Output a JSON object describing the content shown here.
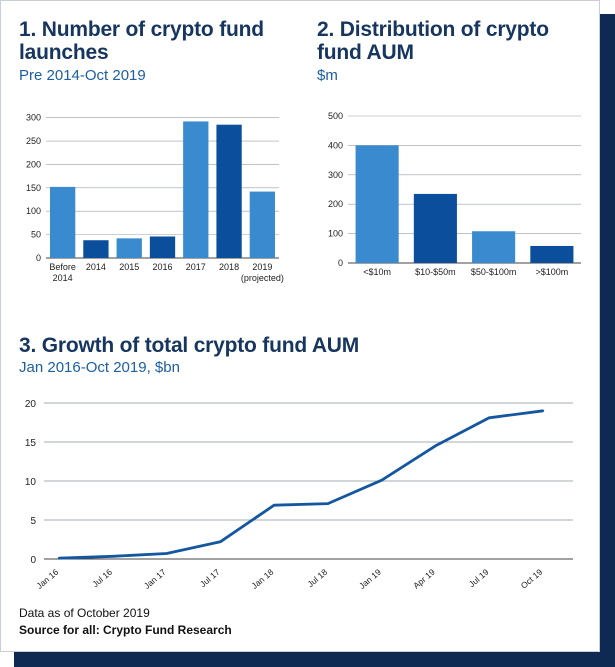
{
  "charts": {
    "one": {
      "title": "1. Number of crypto fund launches",
      "subtitle": "Pre 2014-Oct 2019"
    },
    "two": {
      "title": "2. Distribution of crypto fund AUM",
      "subtitle": "$m"
    },
    "three": {
      "title": "3. Growth of total crypto fund AUM",
      "subtitle": "Jan 2016-Oct 2019, $bn"
    }
  },
  "footer": {
    "note": "Data as of October 2019",
    "source": "Source for all: Crypto Fund Research"
  },
  "colors": {
    "light_blue": "#3a8ad0",
    "dark_blue": "#0b4f9c",
    "line": "#1457a0",
    "title": "#17365f",
    "subtitle": "#1c5fa6"
  },
  "chart_data": [
    {
      "type": "bar",
      "title": "1. Number of crypto fund launches",
      "subtitle": "Pre 2014-Oct 2019",
      "categories": [
        [
          "Before",
          "2014"
        ],
        [
          "2014"
        ],
        [
          "2015"
        ],
        [
          "2016"
        ],
        [
          "2017"
        ],
        [
          "2018"
        ],
        [
          "2019",
          "(projected)"
        ]
      ],
      "values": [
        152,
        38,
        42,
        46,
        292,
        285,
        142
      ],
      "bar_colors": [
        "light",
        "dark",
        "light",
        "dark",
        "light",
        "dark",
        "light"
      ],
      "yticks": [
        0,
        50,
        100,
        150,
        200,
        250,
        300
      ],
      "ylim": [
        0,
        310
      ],
      "grid": true
    },
    {
      "type": "bar",
      "title": "2. Distribution of crypto fund AUM",
      "subtitle": "$m",
      "categories": [
        [
          "<$10m"
        ],
        [
          "$10-$50m"
        ],
        [
          "$50-$100m"
        ],
        [
          ">$100m"
        ]
      ],
      "values": [
        400,
        235,
        108,
        58
      ],
      "bar_colors": [
        "light",
        "dark",
        "light",
        "dark"
      ],
      "yticks": [
        0,
        100,
        200,
        300,
        400,
        500
      ],
      "ylim": [
        0,
        500
      ],
      "grid": true
    },
    {
      "type": "line",
      "title": "3. Growth of total crypto fund AUM",
      "subtitle": "Jan 2016-Oct 2019, $bn",
      "x": [
        "Jan 16",
        "Jul 16",
        "Jan 17",
        "Jul 17",
        "Jan 18",
        "Jul 18",
        "Jan 19",
        "Apr 19",
        "Jul 19",
        "Oct 19"
      ],
      "values": [
        0.1,
        0.35,
        0.7,
        2.2,
        6.9,
        7.1,
        10.1,
        14.5,
        18.1,
        19.0
      ],
      "yticks": [
        0,
        5,
        10,
        15,
        20
      ],
      "ylim": [
        0,
        20
      ],
      "grid": true
    }
  ]
}
